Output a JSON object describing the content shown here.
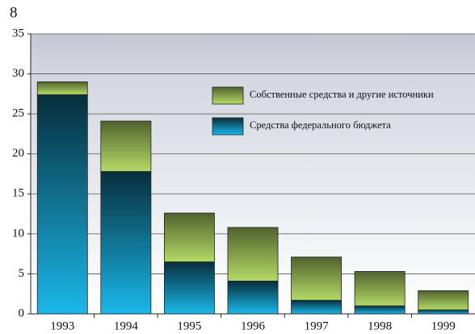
{
  "chart_data": {
    "type": "stacked_bar",
    "title": "8",
    "categories": [
      "1993",
      "1994",
      "1995",
      "1996",
      "1997",
      "1998",
      "1999"
    ],
    "series": [
      {
        "name": "Средства федерального бюджета",
        "color": "#1ab8ea",
        "values": [
          27.4,
          17.8,
          6.5,
          4.1,
          1.7,
          1.0,
          0.5
        ]
      },
      {
        "name": "Собственные средства и другие источники",
        "color": "#b4da66",
        "values": [
          1.6,
          6.3,
          6.1,
          6.7,
          5.4,
          4.3,
          2.4
        ]
      }
    ],
    "ylim": [
      0,
      35
    ],
    "yticks": [
      0,
      5,
      10,
      15,
      20,
      25,
      30,
      35
    ],
    "grid": true
  }
}
